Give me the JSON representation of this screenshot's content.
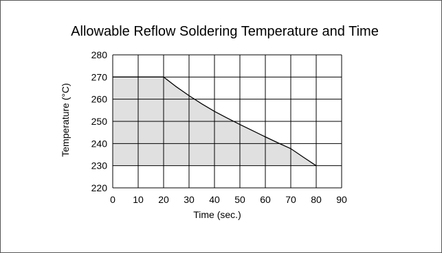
{
  "chart_data": {
    "type": "area",
    "title": "Allowable Reflow Soldering Temperature and Time",
    "xlabel": "Time (sec.)",
    "ylabel": "Temperature (°C)",
    "xlim": [
      0,
      90
    ],
    "ylim": [
      220,
      280
    ],
    "x_ticks": [
      0,
      10,
      20,
      30,
      40,
      50,
      60,
      70,
      80,
      90
    ],
    "y_ticks": [
      220,
      230,
      240,
      250,
      260,
      270,
      280
    ],
    "grid": true,
    "legend": "none",
    "series": [
      {
        "x": [
          0,
          20,
          25,
          30,
          35,
          40,
          45,
          50,
          55,
          60,
          65,
          70,
          75,
          80
        ],
        "y": [
          270,
          270,
          265.6,
          261.6,
          257.9,
          254.5,
          251.5,
          248.6,
          245.8,
          243.0,
          240.3,
          237.7,
          233.8,
          230
        ]
      }
    ],
    "fill_baseline": 230,
    "colors": {
      "fill": "#e0e0e0",
      "line": "#000000",
      "grid": "#000000"
    }
  }
}
